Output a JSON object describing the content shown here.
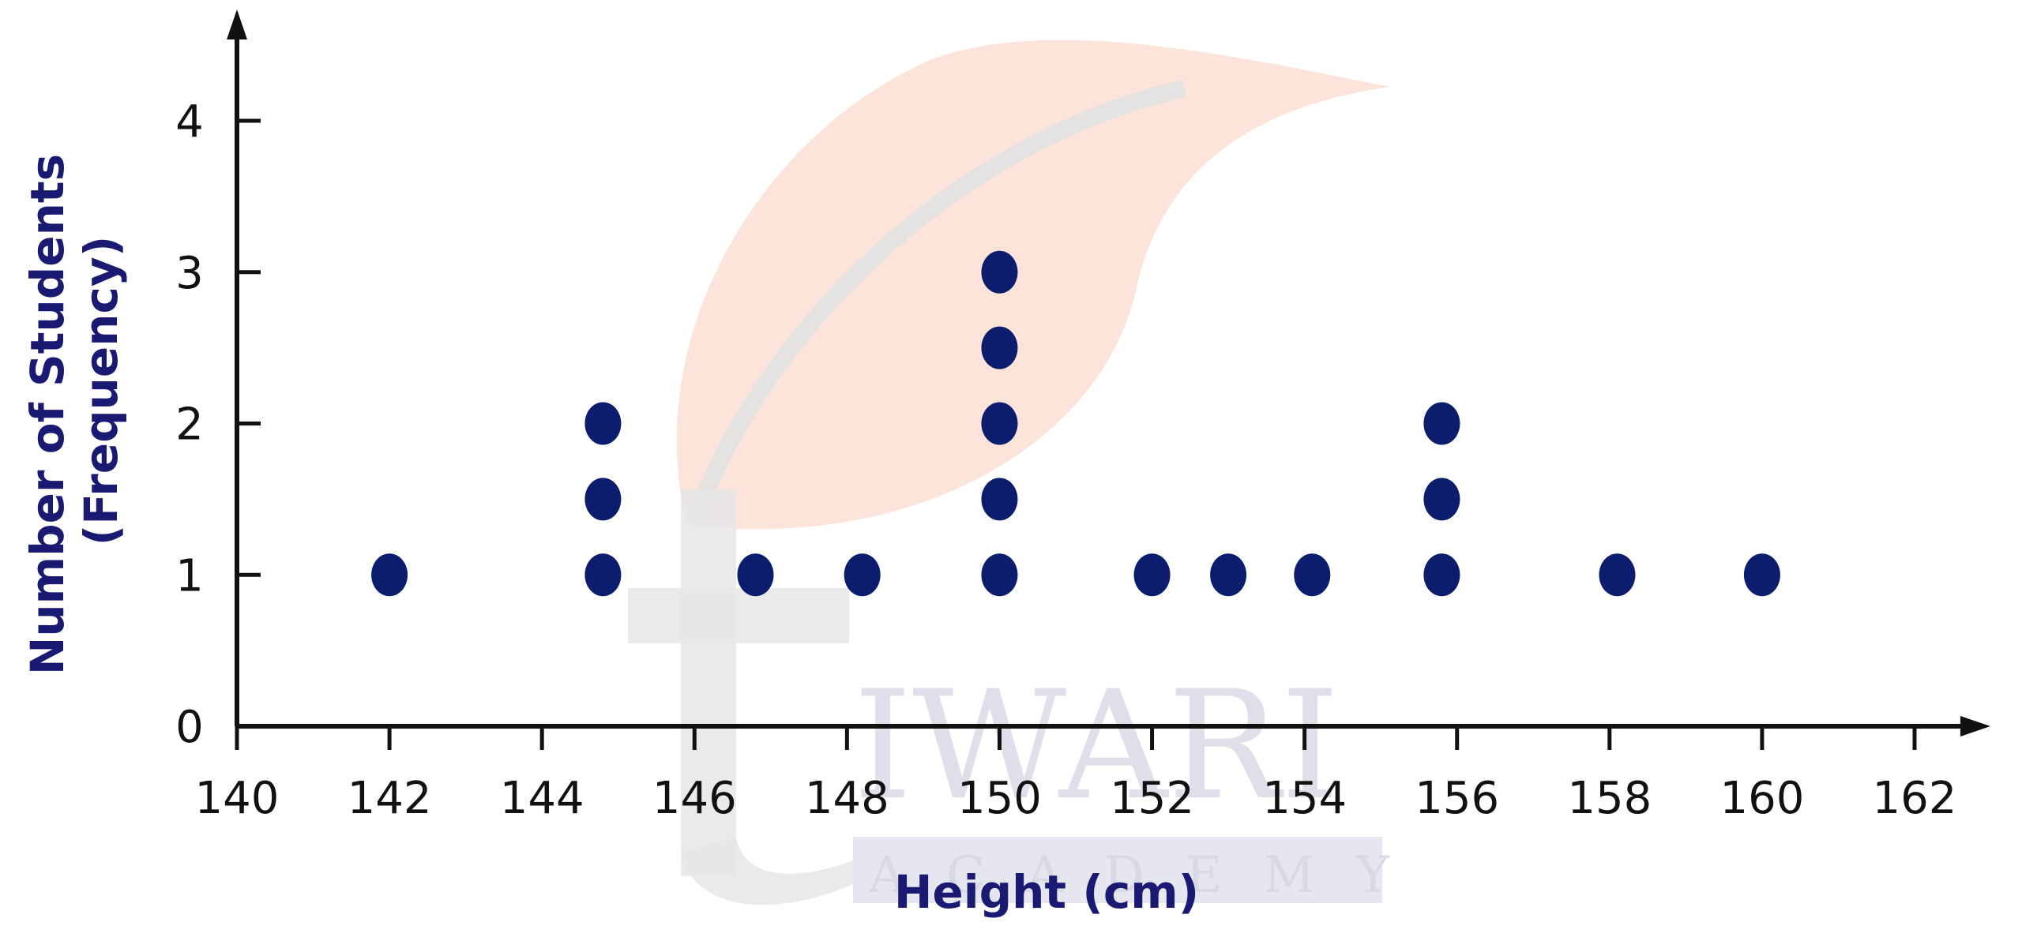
{
  "chart_data": {
    "type": "scatter",
    "subtype": "dot-plot",
    "xlabel": "Height (cm)",
    "ylabel": "Number of Students (Frequency)",
    "ylabel_lines": [
      "Number of Students",
      "(Frequency)"
    ],
    "xlim": [
      140,
      162
    ],
    "ylim": [
      0,
      4
    ],
    "x_ticks": [
      140,
      142,
      144,
      146,
      148,
      150,
      152,
      154,
      156,
      158,
      160,
      162
    ],
    "y_ticks": [
      0,
      1,
      2,
      3,
      4
    ],
    "grid": false,
    "legend": null,
    "columns": [
      {
        "x": 142,
        "y": [
          1
        ]
      },
      {
        "x": 144.8,
        "y": [
          1,
          1.5,
          2
        ]
      },
      {
        "x": 146.8,
        "y": [
          1
        ]
      },
      {
        "x": 148.2,
        "y": [
          1
        ]
      },
      {
        "x": 150,
        "y": [
          1,
          1.5,
          2,
          2.5,
          3
        ]
      },
      {
        "x": 152,
        "y": [
          1
        ]
      },
      {
        "x": 153,
        "y": [
          1
        ]
      },
      {
        "x": 154.1,
        "y": [
          1
        ]
      },
      {
        "x": 155.8,
        "y": [
          1,
          1.5,
          2
        ]
      },
      {
        "x": 158.1,
        "y": [
          1
        ]
      },
      {
        "x": 160,
        "y": [
          1
        ]
      }
    ],
    "colors": {
      "dot": "#0d1d6e",
      "axis": "#111111",
      "title": "#1a1a72"
    }
  },
  "watermark": {
    "letter": "t",
    "word": "IWARI",
    "subword": "ACADEMY",
    "leaf_color": "#fbdfd3"
  }
}
